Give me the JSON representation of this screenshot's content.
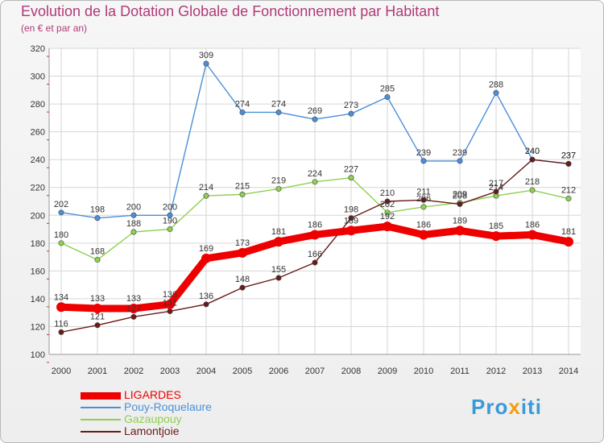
{
  "title": "Evolution de la Dotation Globale de Fonctionnement par Habitant",
  "subtitle": "(en € et par an)",
  "logo": {
    "parts": [
      "Pro",
      "x",
      "iti"
    ],
    "colors": [
      "#3a9ad9",
      "#f39c12",
      "#3a9ad9"
    ]
  },
  "chart_data": {
    "type": "line",
    "title": "Evolution de la Dotation Globale de Fonctionnement par Habitant",
    "subtitle": "(en € et par an)",
    "xlabel": "",
    "ylabel": "",
    "ylim": [
      100,
      320
    ],
    "yticks": [
      100,
      120,
      140,
      160,
      180,
      200,
      220,
      240,
      260,
      280,
      300,
      320
    ],
    "categories": [
      "2000",
      "2001",
      "2002",
      "2003",
      "2004",
      "2005",
      "2006",
      "2007",
      "2008",
      "2009",
      "2010",
      "2011",
      "2012",
      "2013",
      "2014"
    ],
    "legend_position": "bottom-left",
    "series": [
      {
        "name": "LIGARDES",
        "color": "#ee0000",
        "thick": true,
        "values": [
          134,
          133,
          133,
          136,
          169,
          173,
          181,
          186,
          189,
          192,
          186,
          189,
          185,
          186,
          181
        ]
      },
      {
        "name": "Pouy-Roquelaure",
        "color": "#4a90d9",
        "thick": false,
        "values": [
          202,
          198,
          200,
          200,
          309,
          274,
          274,
          269,
          273,
          285,
          239,
          239,
          288,
          240,
          237
        ]
      },
      {
        "name": "Gazaupouy",
        "color": "#8ed050",
        "thick": false,
        "values": [
          180,
          168,
          188,
          190,
          214,
          215,
          219,
          224,
          227,
          202,
          206,
          209,
          214,
          218,
          212
        ]
      },
      {
        "name": "Lamontjoie",
        "color": "#6a1a1a",
        "thick": false,
        "values": [
          116,
          121,
          127,
          131,
          136,
          148,
          155,
          166,
          198,
          210,
          211,
          208,
          217,
          240,
          237
        ]
      }
    ]
  }
}
